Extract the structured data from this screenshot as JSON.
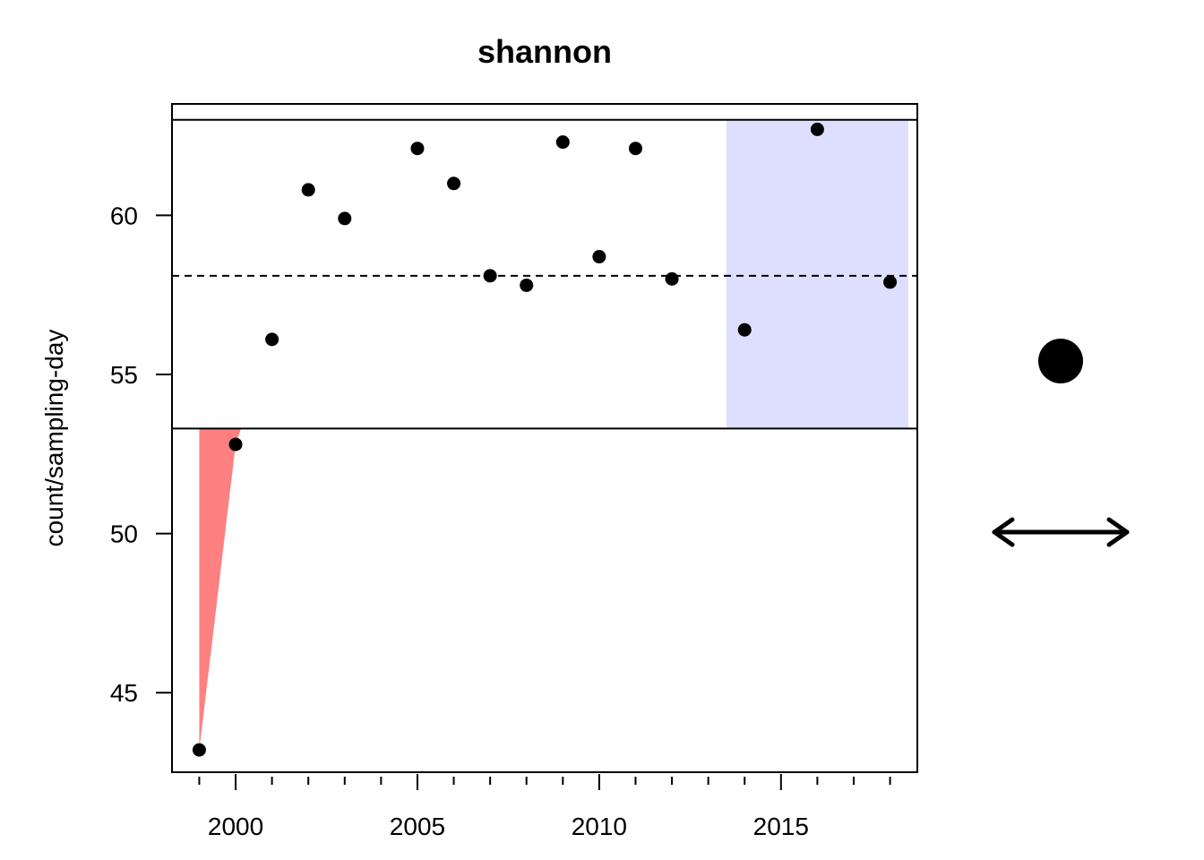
{
  "chart_data": {
    "type": "scatter",
    "title": "shannon",
    "xlabel": "",
    "ylabel": "count/sampling-day",
    "xlim": [
      1998.25,
      2018.75
    ],
    "ylim": [
      42.5,
      63.5
    ],
    "x_major_ticks": [
      2000,
      2005,
      2010,
      2015
    ],
    "x_tick_labels": [
      "2000",
      "2005",
      "2010",
      "2015"
    ],
    "x_minor_ticks": [
      1999,
      2001,
      2002,
      2003,
      2004,
      2006,
      2007,
      2008,
      2009,
      2011,
      2012,
      2013,
      2014,
      2016,
      2017,
      2018
    ],
    "y_ticks": [
      45,
      50,
      55,
      60
    ],
    "y_tick_labels": [
      "45",
      "50",
      "55",
      "60"
    ],
    "grid": false,
    "series": [
      {
        "x": [
          1999,
          2000,
          2001,
          2002,
          2003,
          2005,
          2006,
          2007,
          2008,
          2009,
          2010,
          2011,
          2012,
          2014,
          2016,
          2018
        ],
        "y": [
          43.2,
          52.8,
          56.1,
          60.8,
          59.9,
          62.1,
          61.0,
          58.1,
          57.8,
          62.3,
          58.7,
          62.1,
          58.0,
          56.4,
          62.7,
          57.9
        ]
      }
    ],
    "mean_line": 58.1,
    "upper_limit": 63.0,
    "lower_limit": 53.3,
    "highlight_region": {
      "x": [
        2013.5,
        2018.5
      ],
      "color": "#dedeff"
    },
    "deficit_polygon": {
      "points": [
        [
          1999,
          53.3
        ],
        [
          2000.15,
          53.3
        ],
        [
          2000,
          52.8
        ],
        [
          1999,
          43.2
        ]
      ],
      "color": "#ff8080"
    },
    "legend": {
      "placement": "right",
      "symbols": [
        "filled-circle",
        "double-arrow"
      ]
    }
  }
}
